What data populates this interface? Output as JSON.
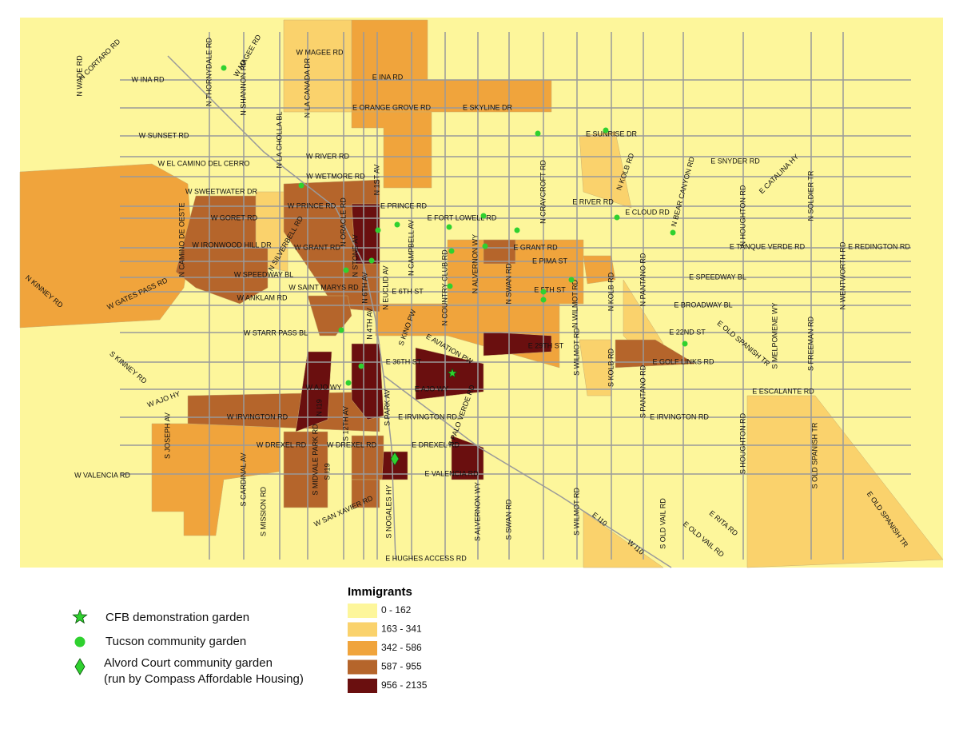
{
  "map": {
    "road_labels": [
      "N WADE RD",
      "N CORTARO RD",
      "W INA RD",
      "N THORNYDALE RD",
      "W MAGEE RD",
      "N SHANNON RD",
      "W MAGEE RD",
      "N LA CANADA DR",
      "E INA RD",
      "E ORANGE GROVE RD",
      "E SKYLINE DR",
      "N LA CHOLLA BL",
      "W SUNSET RD",
      "W RIVER RD",
      "W EL CAMINO DEL CERRO",
      "W WETMORE RD",
      "N 1ST AV",
      "W SWEETWATER DR",
      "W PRINCE RD",
      "E PRINCE RD",
      "E FORT LOWELL RD",
      "N CRAYCROFT RD",
      "E SUNRISE DR",
      "N KOLB RD",
      "E RIVER RD",
      "E CLOUD RD",
      "N BEAR CANYON RD",
      "E SNYDER RD",
      "E CATALINA HY",
      "N HOUGHTON RD",
      "N SOLDIER TR",
      "N CAMINO DE OESTE",
      "W GORET RD",
      "N SILVERBELL RD",
      "N ORACLE RD",
      "N STONE AV",
      "N CAMPBELL AV",
      "W GRANT RD",
      "W IRONWOOD HILL DR",
      "E GRANT RD",
      "N ALVERNON WY",
      "N SWAN RD",
      "E PIMA ST",
      "E TANQUE VERDE RD",
      "E REDINGTON RD",
      "N WENTWORTH RD",
      "N PANTANO RD",
      "N KOLB RD",
      "N WILMOT RD",
      "E SPEEDWAY BL",
      "W SPEEDWAY BL",
      "N EUCLID AV",
      "N 6TH AV",
      "E 6TH ST",
      "N COUNTRY CLUB RD",
      "W SAINT MARYS RD",
      "E 5TH ST",
      "E BROADWAY BL",
      "W GATES PASS RD",
      "W ANKLAM RD",
      "N KINNEY RD",
      "N 4TH AV",
      "S KINO PW",
      "W STARR PASS BL",
      "E 22ND ST",
      "E OLD SPANISH TR",
      "S MELPOMENE WY",
      "S FREEMAN RD",
      "E AVIATION PW",
      "E 29TH ST",
      "S WILMOT RD",
      "S KOLB RD",
      "E GOLF LINKS RD",
      "E 36TH ST",
      "S KINNEY RD",
      "W AJO WY",
      "E AJO WY",
      "W AJO HY",
      "E ESCALANTE RD",
      "S PANTANO RD",
      "N I19",
      "S 12TH AV",
      "S PARK AV",
      "S PALO VERDE RD",
      "W IRVINGTON RD",
      "E IRVINGTON RD",
      "E IRVINGTON RD",
      "S JOSEPH AV",
      "S MIDVALE PARK RD",
      "W DREXEL RD",
      "W DREXEL RD",
      "E DREXEL RD",
      "S CARDINAL AV",
      "S I19",
      "W VALENCIA RD",
      "E VALENCIA RD",
      "S HOUGHTON RD",
      "S OLD SPANISH TR",
      "W SAN XAVIER RD",
      "S NOGALES HY",
      "S MISSION RD",
      "S ALVERNON WY",
      "S SWAN RD",
      "S WILMOT RD",
      "E I10",
      "W I10",
      "S OLD VAIL RD",
      "E RITA RD",
      "E OLD VAIL RD",
      "E OLD SPANISH TR",
      "E HUGHES ACCESS RD"
    ]
  },
  "legend": {
    "symbols": [
      {
        "label": "CFB demonstration garden"
      },
      {
        "label": "Tucson community garden"
      },
      {
        "lines": [
          "Alvord Court community garden",
          "(run by Compass Affordable Housing)"
        ]
      }
    ],
    "classes_title": "Immigrants",
    "classes": [
      {
        "label": "0 - 162",
        "color": "#fdf69b"
      },
      {
        "label": "163 - 341",
        "color": "#fad26c"
      },
      {
        "label": "342 - 586",
        "color": "#f0a43c"
      },
      {
        "label": "587 - 955",
        "color": "#b5652b"
      },
      {
        "label": "956 - 2135",
        "color": "#6a0f0f"
      }
    ]
  }
}
